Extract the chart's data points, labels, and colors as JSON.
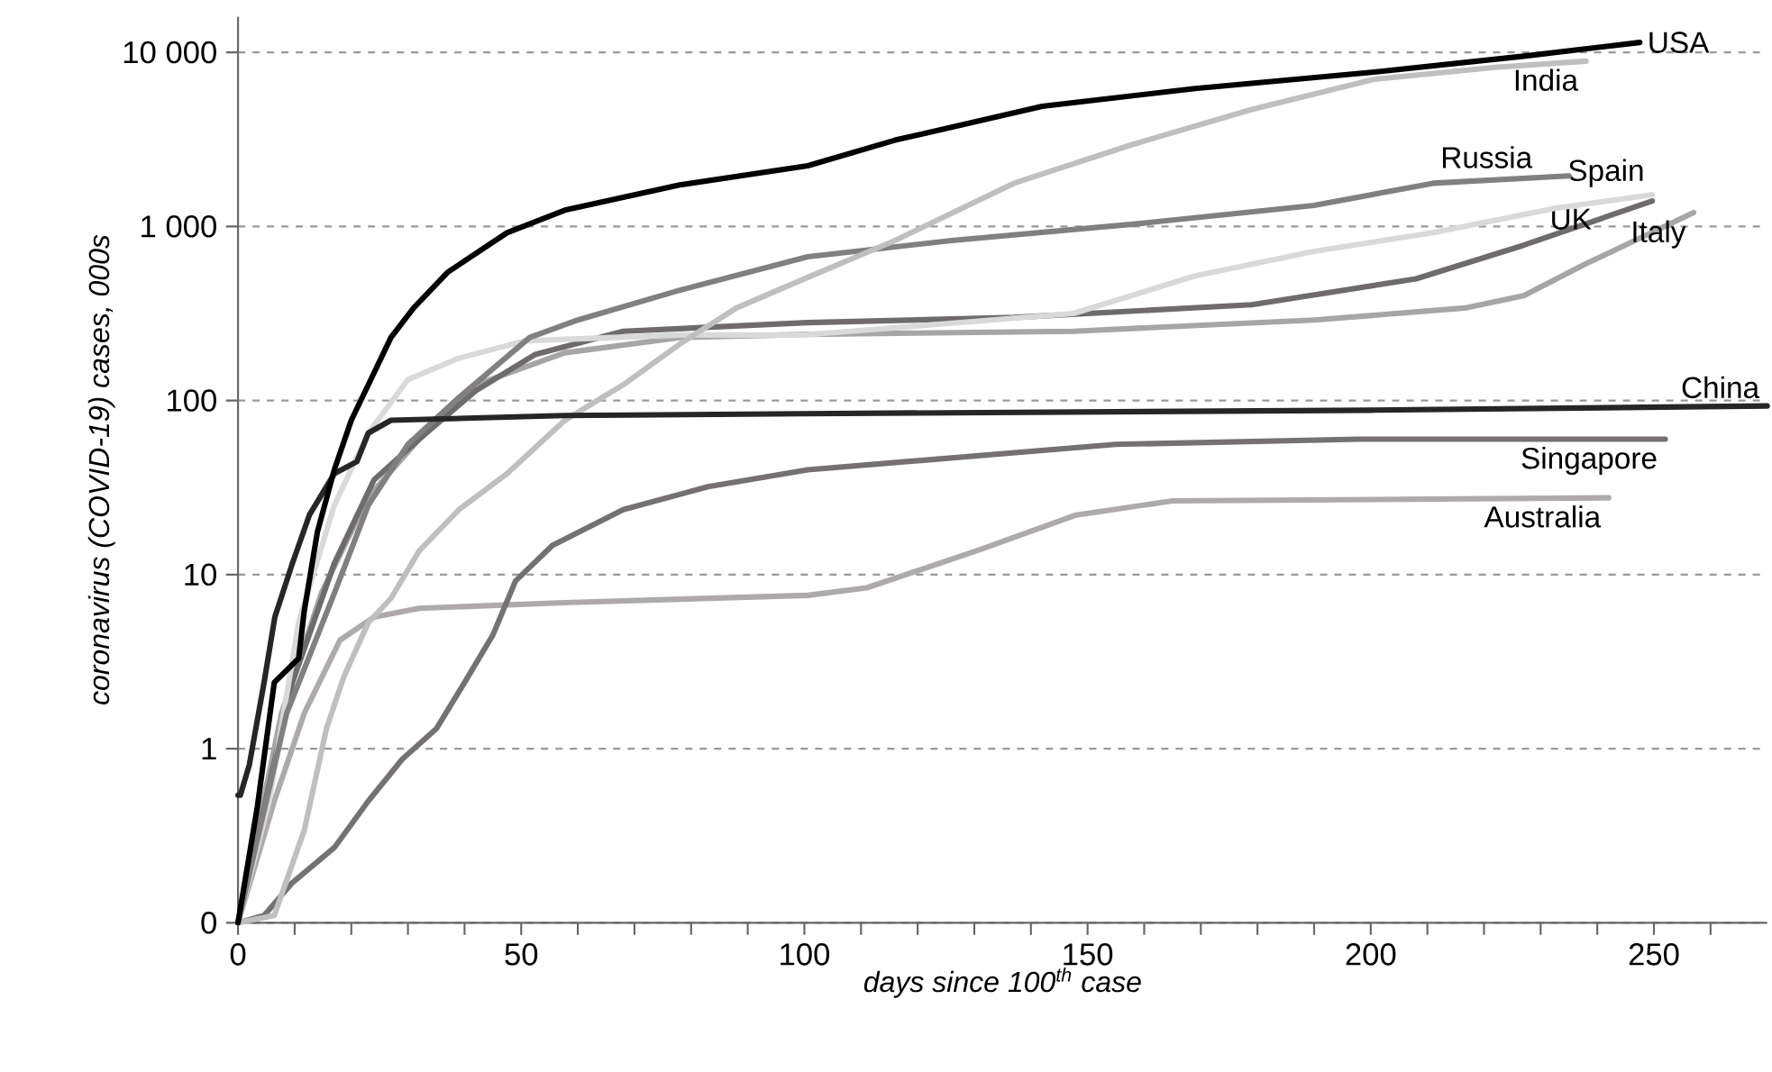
{
  "chart_data": {
    "type": "line",
    "xlabel": "days since 100$^{th}$ case",
    "ylabel": "coronavirus (COVID-19) cases, 000s",
    "log": "y",
    "grid": "y",
    "marker": "none",
    "line_style": "solid",
    "xlim": [
      0,
      270
    ],
    "ylim": [
      0.1,
      16000
    ],
    "xticks": [
      0,
      {
        "value": 10,
        "label": null
      },
      {
        "value": 20,
        "label": null
      },
      {
        "value": 30,
        "label": null
      },
      {
        "value": 40,
        "label": null
      },
      50,
      {
        "value": 60,
        "label": null
      },
      {
        "value": 70,
        "label": null
      },
      {
        "value": 80,
        "label": null
      },
      {
        "value": 90,
        "label": null
      },
      100,
      {
        "value": 110,
        "label": null
      },
      {
        "value": 120,
        "label": null
      },
      {
        "value": 130,
        "label": null
      },
      {
        "value": 140,
        "label": null
      },
      150,
      {
        "value": 160,
        "label": null
      },
      {
        "value": 170,
        "label": null
      },
      {
        "value": 180,
        "label": null
      },
      {
        "value": 190,
        "label": null
      },
      200,
      {
        "value": 210,
        "label": null
      },
      {
        "value": 220,
        "label": null
      },
      {
        "value": 230,
        "label": null
      },
      {
        "value": 240,
        "label": null
      },
      250,
      {
        "value": 260,
        "label": null
      }
    ],
    "yticks": [
      {
        "value": 0.1,
        "label": "0"
      },
      1,
      10,
      100,
      {
        "value": 1000,
        "label": "1 000"
      },
      {
        "value": 10000,
        "label": "10 000"
      }
    ],
    "series": [
      {
        "name": "Australia",
        "color": "#aeaaaa",
        "x": [
          0,
          6.4,
          11.7,
          18,
          24,
          32,
          57.7,
          100.6,
          111,
          131,
          148,
          165,
          242
        ],
        "values": [
          0.1,
          0.5,
          1.6,
          4.2,
          5.7,
          6.4,
          6.9,
          7.6,
          8.4,
          13.9,
          22,
          26.5,
          27.6
        ]
      },
      {
        "name": "Singapore",
        "color": "#767171",
        "x": [
          0,
          4.6,
          9.6,
          17,
          23,
          29,
          35,
          40,
          45,
          49,
          55.5,
          68,
          83,
          100.6,
          155,
          198,
          252
        ],
        "values": [
          0.1,
          0.11,
          0.17,
          0.27,
          0.5,
          0.87,
          1.3,
          2.4,
          4.5,
          9.2,
          14.7,
          23.6,
          32,
          40,
          56,
          60,
          60
        ]
      },
      {
        "name": "Italy",
        "color": "#a6a6a6",
        "x": [
          0,
          7.7,
          14.7,
          23,
          32,
          42,
          57.7,
          78,
          100.6,
          147.5,
          190,
          216.6,
          227,
          238,
          257
        ],
        "values": [
          0.1,
          1.6,
          7.8,
          28,
          60,
          123,
          188,
          230,
          240,
          250,
          290,
          340,
          400,
          610,
          1200
        ]
      },
      {
        "name": "UK",
        "color": "#6f6b6b",
        "x": [
          0,
          9.6,
          17,
          24,
          32,
          42,
          52.5,
          68,
          100.6,
          137,
          179,
          208,
          227,
          249.7
        ],
        "values": [
          0.1,
          2.4,
          11.6,
          35,
          60,
          114,
          184,
          250,
          280,
          300,
          355,
          500,
          780,
          1400
        ]
      },
      {
        "name": "Spain",
        "color": "#d9d9d9",
        "x": [
          0,
          5.5,
          10.7,
          17,
          23,
          30,
          39,
          50.6,
          78,
          100,
          147.5,
          169,
          190,
          211,
          232.5,
          249.7
        ],
        "values": [
          0.1,
          0.5,
          5.3,
          25,
          65,
          132,
          175,
          220,
          238,
          238,
          316,
          520,
          720,
          920,
          1270,
          1520
        ]
      },
      {
        "name": "Russia",
        "color": "#808080",
        "x": [
          0,
          8.6,
          17,
          23,
          30,
          39,
          51.5,
          60,
          78,
          100.6,
          126,
          158,
          190,
          211,
          235
        ],
        "values": [
          0.1,
          1.6,
          7.8,
          25,
          56,
          104,
          230,
          290,
          430,
          670,
          830,
          1030,
          1320,
          1770,
          1950
        ]
      },
      {
        "name": "India",
        "color": "#bfbfbf",
        "x": [
          0,
          6.4,
          11.7,
          15.6,
          18.7,
          23,
          27,
          32,
          39,
          47.5,
          57.7,
          68,
          78,
          88,
          100.6,
          116,
          137,
          158,
          179,
          200.6,
          222,
          238
        ],
        "values": [
          0.1,
          0.11,
          0.34,
          1.3,
          2.6,
          5.3,
          7.3,
          13.7,
          23.6,
          38,
          77,
          123,
          211,
          340,
          510,
          830,
          1770,
          2960,
          4700,
          7000,
          8200,
          8900
        ]
      },
      {
        "name": "China",
        "color": "#262626",
        "x": [
          0,
          0.4,
          2,
          4.6,
          6.5,
          9.6,
          12.6,
          17,
          21,
          23,
          27,
          57.7,
          100,
          200,
          270
        ],
        "values": [
          0.54,
          0.54,
          0.81,
          2.4,
          5.7,
          11.6,
          22,
          38,
          44.6,
          65,
          77,
          82,
          84,
          88,
          93
        ]
      },
      {
        "name": "USA",
        "color": "#000000",
        "x": [
          0,
          3.4,
          6.4,
          10.7,
          11.7,
          14,
          17,
          20,
          23,
          27,
          31,
          37,
          47.5,
          57.7,
          78,
          100.6,
          116,
          142,
          169,
          200.6,
          227,
          247.5
        ],
        "values": [
          0.1,
          0.46,
          2.4,
          3.3,
          6.2,
          17.5,
          40,
          77,
          123,
          230,
          340,
          545,
          920,
          1240,
          1730,
          2230,
          3130,
          4900,
          6200,
          7700,
          9500,
          11400
        ]
      }
    ]
  }
}
